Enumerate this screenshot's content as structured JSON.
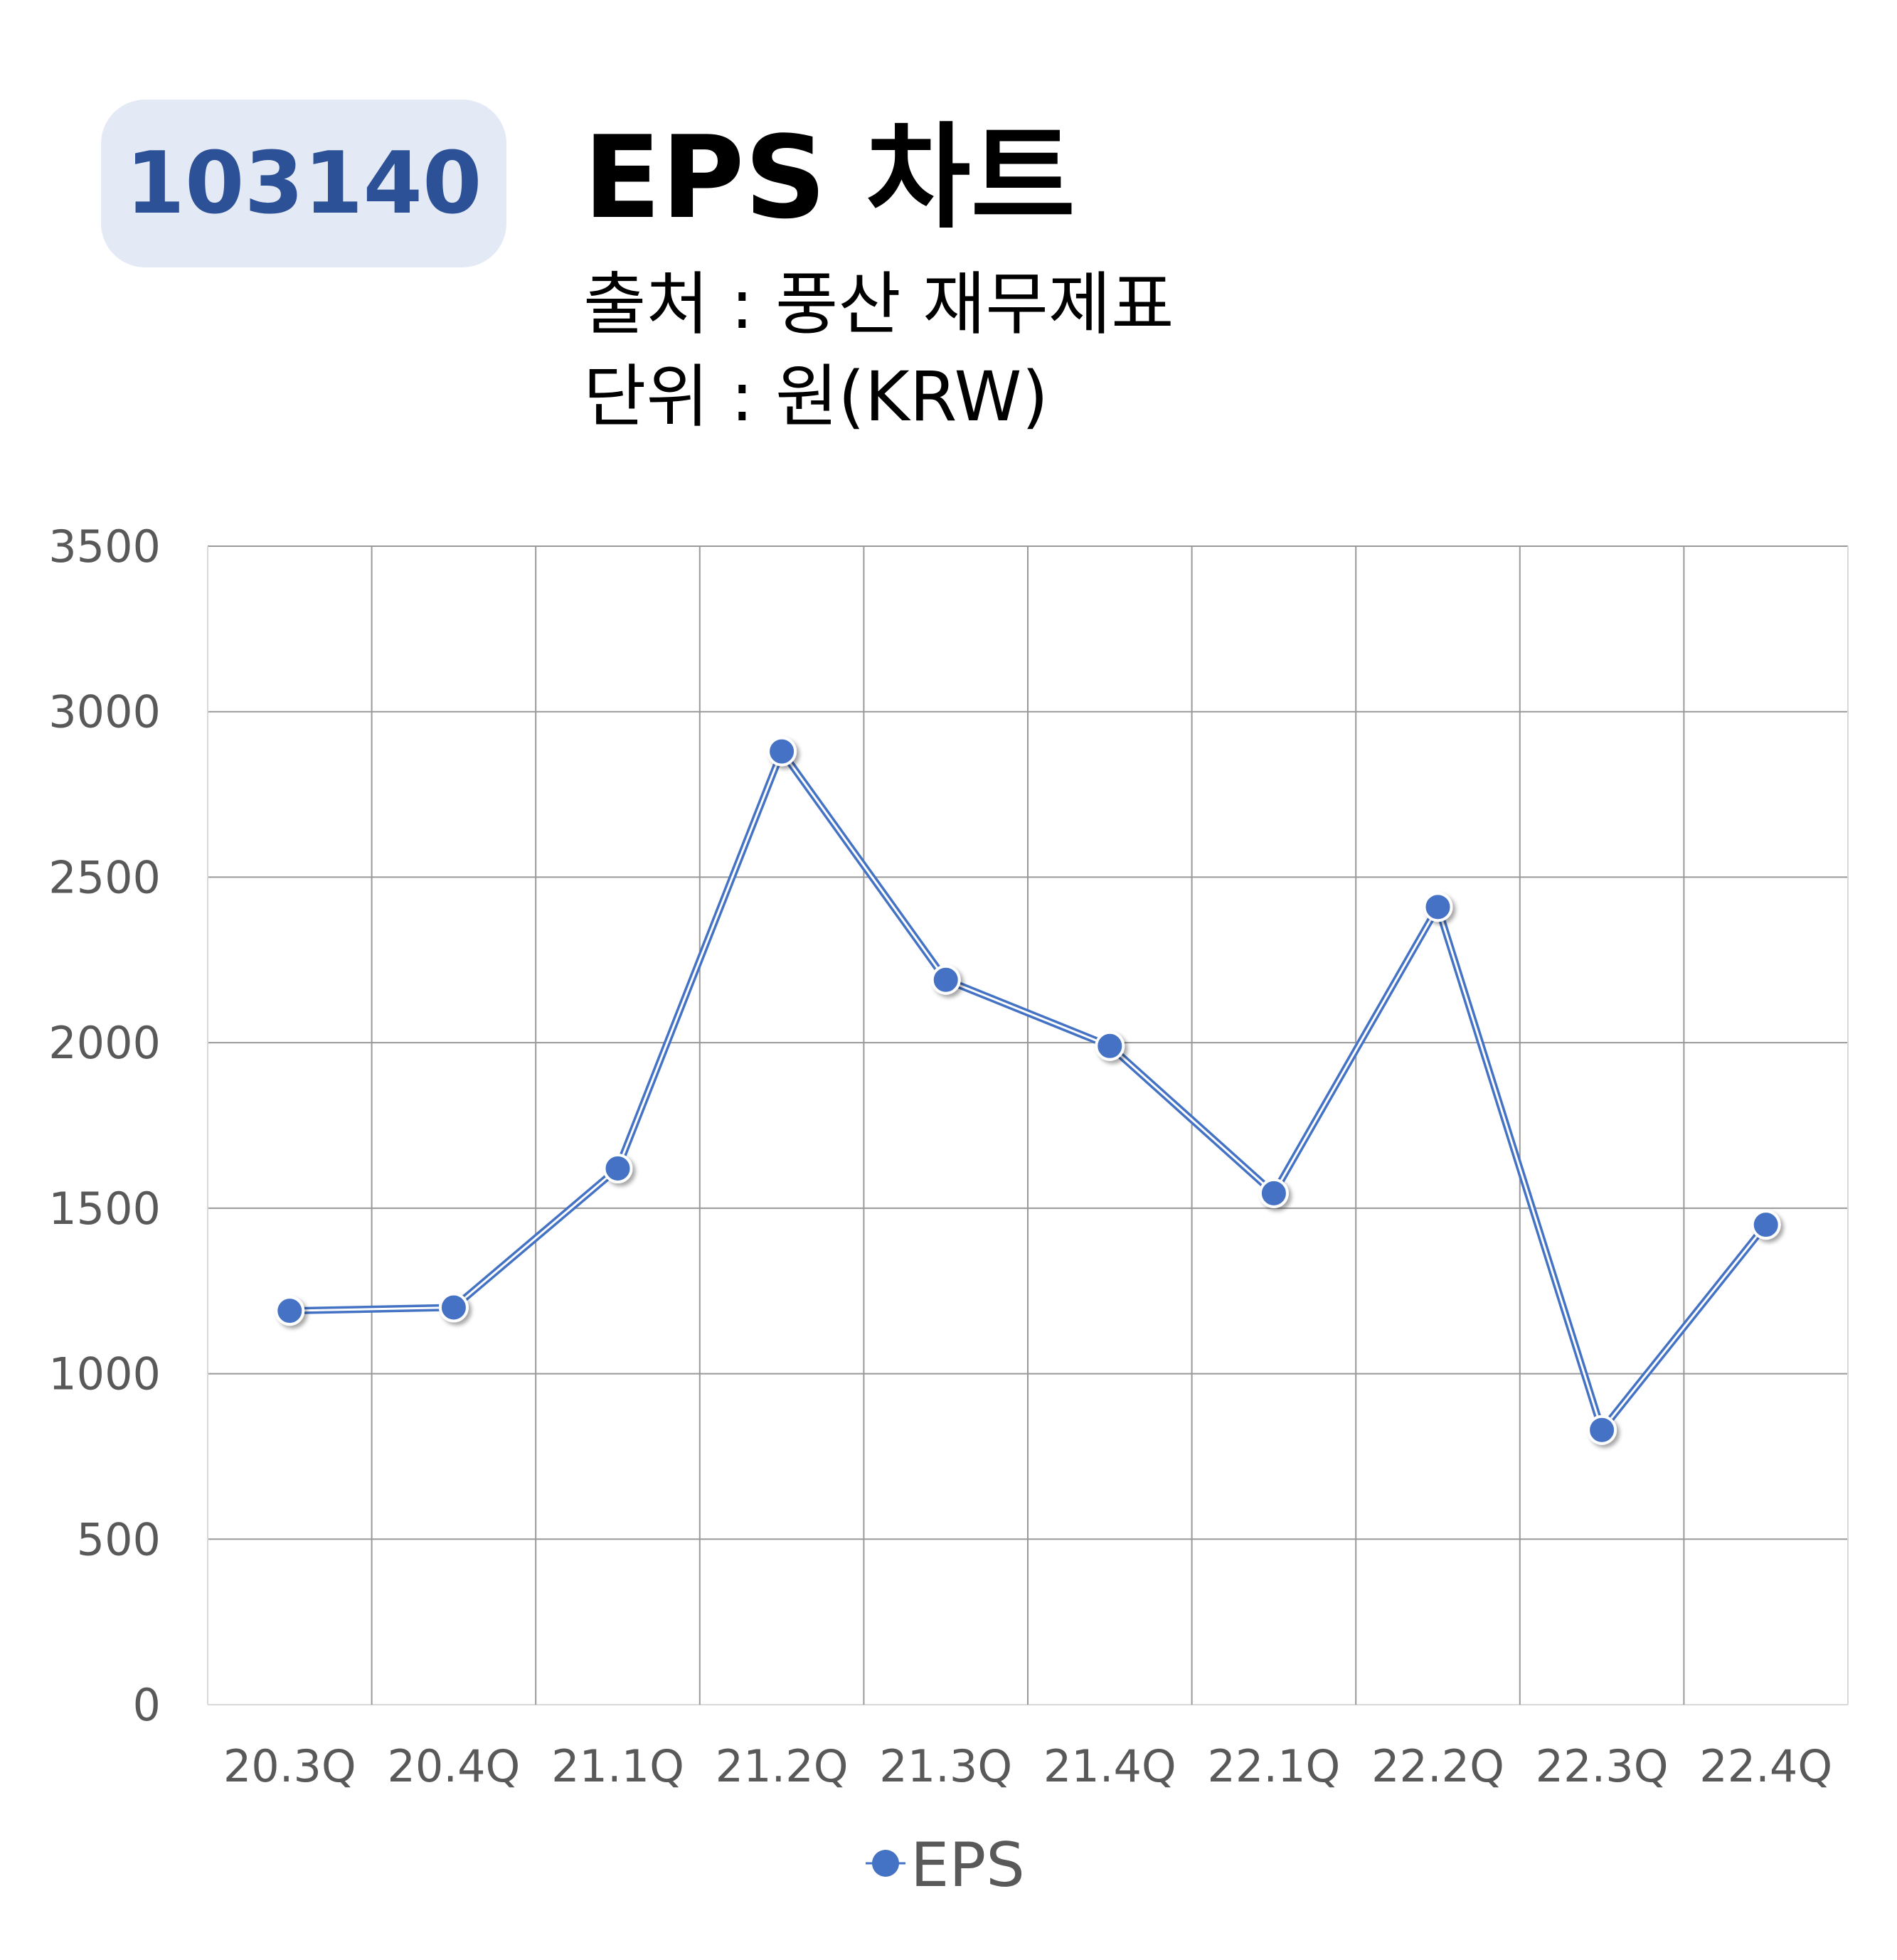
{
  "header": {
    "code": "103140",
    "title": "EPS 차트",
    "source": "출처 : 풍산 재무제표",
    "unit": "단위 : 원(KRW)"
  },
  "colors": {
    "badge_bg": "#e3e9f5",
    "badge_text": "#2d5196",
    "series": "#4472c4",
    "grid": "#999999",
    "tick_text": "#595959"
  },
  "chart_data": {
    "type": "line",
    "categories": [
      "20.3Q",
      "20.4Q",
      "21.1Q",
      "21.2Q",
      "21.3Q",
      "21.4Q",
      "22.1Q",
      "22.2Q",
      "22.3Q",
      "22.4Q"
    ],
    "series": [
      {
        "name": "EPS",
        "values": [
          1190,
          1200,
          1620,
          2880,
          2190,
          1990,
          1545,
          2410,
          830,
          1450
        ]
      }
    ],
    "ylim": [
      0,
      3500
    ],
    "yticks": [
      "0",
      "500",
      "1000",
      "1500",
      "2000",
      "2500",
      "3000",
      "3500"
    ],
    "grid": true,
    "legend": "bottom"
  }
}
